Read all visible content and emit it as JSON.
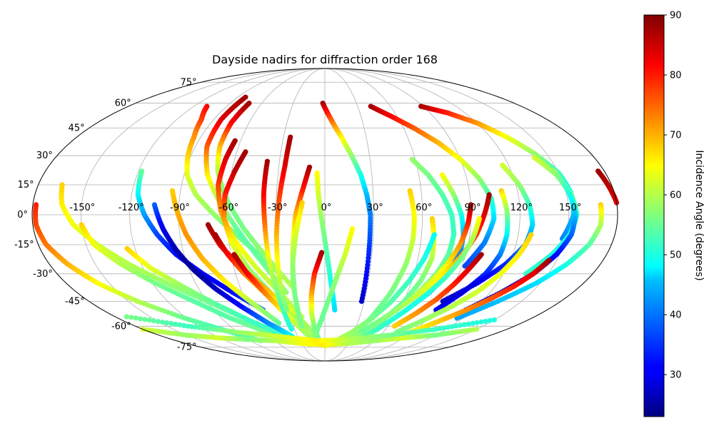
{
  "chart_data": {
    "type": "scatter",
    "projection": "mollweide",
    "title": "Dayside nadirs for diffraction order 168",
    "grid": true,
    "colormap": "jet",
    "lon_ticks": [
      "-150°",
      "-120°",
      "-90°",
      "-60°",
      "-30°",
      "0°",
      "30°",
      "60°",
      "90°",
      "120°",
      "150°"
    ],
    "lat_ticks": [
      "75°",
      "60°",
      "45°",
      "30°",
      "15°",
      "0°",
      "-15°",
      "-30°",
      "-45°",
      "-60°",
      "-75°"
    ],
    "colorbar": {
      "label": "Incidence Angle (degrees)",
      "range": [
        23,
        90
      ],
      "ticks": [
        "30",
        "40",
        "50",
        "60",
        "70",
        "80",
        "90"
      ]
    },
    "tracks": [
      {
        "lon": [
          -178,
          -178,
          -175,
          -168,
          -158,
          -143,
          -122,
          -100,
          -78
        ],
        "lat": [
          5,
          -5,
          -15,
          -25,
          -35,
          -45,
          -55,
          -63,
          -70
        ],
        "inc": [
          80,
          77,
          74,
          70,
          65,
          60,
          55,
          52,
          55
        ]
      },
      {
        "lon": [
          -165,
          -162,
          -155,
          -143,
          -128,
          -110,
          -90,
          -70
        ],
        "lat": [
          15,
          5,
          -5,
          -15,
          -25,
          -35,
          -45,
          -55
        ],
        "inc": [
          68,
          66,
          64,
          62,
          60,
          58,
          56,
          55
        ]
      },
      {
        "lon": [
          -150,
          -145,
          -133,
          -118,
          -100,
          -82,
          -62,
          -45
        ],
        "lat": [
          -5,
          -15,
          -25,
          -35,
          -45,
          -55,
          -63,
          -70
        ],
        "inc": [
          68,
          64,
          60,
          56,
          54,
          54,
          56,
          60
        ]
      },
      {
        "lon": [
          -125,
          -115,
          -100,
          -84,
          -66,
          -48,
          -30
        ],
        "lat": [
          -17,
          -27,
          -37,
          -47,
          -57,
          -65,
          -72
        ],
        "inc": [
          68,
          63,
          58,
          54,
          52,
          52,
          55
        ]
      },
      {
        "lon": [
          -108,
          -100,
          -95,
          -92,
          -88,
          -80,
          -68,
          -55,
          -42,
          -30
        ],
        "lat": [
          58,
          50,
          40,
          30,
          20,
          10,
          0,
          -10,
          -20,
          -30
        ],
        "inc": [
          82,
          78,
          72,
          68,
          63,
          60,
          58,
          56,
          55,
          56
        ]
      },
      {
        "lon": [
          -118,
          -116,
          -111,
          -104,
          -95,
          -82,
          -67,
          -50
        ],
        "lat": [
          22,
          10,
          0,
          -10,
          -20,
          -30,
          -40,
          -50
        ],
        "inc": [
          55,
          48,
          42,
          36,
          32,
          30,
          32,
          38
        ]
      },
      {
        "lon": [
          -105,
          -100,
          -94,
          -87,
          -78,
          -66,
          -52,
          -36
        ],
        "lat": [
          5,
          -7,
          -18,
          -28,
          -38,
          -48,
          -58,
          -67
        ],
        "inc": [
          38,
          30,
          26,
          25,
          27,
          32,
          40,
          48
        ]
      },
      {
        "lon": [
          -95,
          -91,
          -86,
          -79,
          -69,
          -56,
          -42
        ],
        "lat": [
          12,
          2,
          -10,
          -22,
          -34,
          -46,
          -58
        ],
        "inc": [
          68,
          70,
          72,
          70,
          66,
          60,
          55
        ]
      },
      {
        "lon": [
          -82,
          -84,
          -82,
          -75,
          -64,
          -52,
          -40,
          -28
        ],
        "lat": [
          64,
          50,
          35,
          20,
          5,
          -10,
          -25,
          -40
        ],
        "inc": [
          88,
          84,
          76,
          66,
          58,
          54,
          55,
          58
        ]
      },
      {
        "lon": [
          -72,
          -74,
          -73,
          -69,
          -61,
          -50,
          -37,
          -23
        ],
        "lat": [
          60,
          48,
          35,
          22,
          8,
          -7,
          -22,
          -37
        ],
        "inc": [
          88,
          82,
          70,
          60,
          56,
          56,
          58,
          60
        ]
      },
      {
        "lon": [
          -64,
          -66,
          -67,
          -64,
          -57,
          -46,
          -33,
          -20
        ],
        "lat": [
          38,
          28,
          15,
          2,
          -12,
          -26,
          -40,
          -54
        ],
        "inc": [
          88,
          84,
          78,
          72,
          66,
          62,
          60,
          60
        ]
      },
      {
        "lon": [
          -54,
          -58,
          -62,
          -62,
          -58,
          -50,
          -38,
          -24
        ],
        "lat": [
          32,
          22,
          10,
          -2,
          -15,
          -28,
          -42,
          -56
        ],
        "inc": [
          88,
          86,
          80,
          72,
          64,
          58,
          56,
          56
        ]
      },
      {
        "lon": [
          -72,
          -66,
          -57,
          -46,
          -34,
          -22,
          -12
        ],
        "lat": [
          -5,
          -15,
          -25,
          -35,
          -45,
          -55,
          -65
        ],
        "inc": [
          88,
          84,
          78,
          72,
          66,
          60,
          58
        ]
      },
      {
        "lon": [
          -68,
          -62,
          -54,
          -44,
          -33,
          -22,
          -12
        ],
        "lat": [
          -10,
          -20,
          -30,
          -40,
          -50,
          -60,
          -70
        ],
        "inc": [
          88,
          82,
          74,
          66,
          60,
          58,
          60
        ]
      },
      {
        "lon": [
          -58,
          -52,
          -44,
          -35,
          -25,
          -14
        ],
        "lat": [
          -20,
          -30,
          -40,
          -50,
          -60,
          -70
        ],
        "inc": [
          88,
          82,
          74,
          66,
          60,
          58
        ]
      },
      {
        "lon": [
          -38,
          -38,
          -37,
          -36,
          -34,
          -33
        ],
        "lat": [
          27,
          10,
          -5,
          -25,
          -45,
          -62
        ],
        "inc": [
          88,
          82,
          74,
          62,
          54,
          50
        ]
      },
      {
        "lon": [
          -25,
          -26,
          -28,
          -30,
          -31,
          -31
        ],
        "lat": [
          40,
          25,
          10,
          -10,
          -30,
          -50
        ],
        "inc": [
          88,
          84,
          78,
          70,
          62,
          56
        ]
      },
      {
        "lon": [
          -10,
          -14,
          -18,
          -20,
          -22,
          -22
        ],
        "lat": [
          24,
          12,
          0,
          -15,
          -35,
          -55
        ],
        "inc": [
          88,
          80,
          70,
          62,
          56,
          52
        ]
      },
      {
        "lon": [
          -14,
          -18,
          -21,
          -22,
          -22
        ],
        "lat": [
          6,
          -10,
          -25,
          -42,
          -60
        ],
        "inc": [
          68,
          62,
          58,
          56,
          56
        ]
      },
      {
        "lon": [
          -2,
          -7,
          -10,
          -11,
          -10,
          -7
        ],
        "lat": [
          -19,
          -30,
          -42,
          -52,
          -62,
          -70
        ],
        "inc": [
          88,
          80,
          70,
          62,
          56,
          55
        ]
      },
      {
        "lon": [
          -5,
          -4,
          -2,
          1,
          4,
          8
        ],
        "lat": [
          21,
          10,
          -2,
          -18,
          -34,
          -50
        ],
        "inc": [
          65,
          62,
          58,
          54,
          50,
          46
        ]
      },
      {
        "lon": [
          -2,
          5,
          12,
          18,
          23,
          26,
          28,
          28,
          28
        ],
        "lat": [
          60,
          50,
          40,
          30,
          20,
          10,
          0,
          -20,
          -45
        ],
        "inc": [
          88,
          76,
          66,
          58,
          50,
          44,
          40,
          34,
          28
        ]
      },
      {
        "lon": [
          17,
          13,
          8,
          3,
          -3,
          -10,
          -20
        ],
        "lat": [
          -7,
          -20,
          -32,
          -44,
          -56,
          -66,
          -73
        ],
        "inc": [
          65,
          62,
          58,
          56,
          55,
          56,
          60
        ]
      },
      {
        "lon": [
          53,
          55,
          55,
          53,
          48,
          40,
          28
        ],
        "lat": [
          12,
          0,
          -12,
          -25,
          -40,
          -55,
          -68
        ],
        "inc": [
          68,
          65,
          62,
          58,
          56,
          55,
          56
        ]
      },
      {
        "lon": [
          66,
          68,
          69,
          66,
          60,
          50,
          36,
          20
        ],
        "lat": [
          -2,
          -12,
          -22,
          -34,
          -46,
          -58,
          -66,
          -72
        ],
        "inc": [
          68,
          64,
          60,
          56,
          55,
          55,
          57,
          60
        ]
      },
      {
        "lon": [
          68,
          64,
          58,
          50,
          40,
          28,
          14,
          0
        ],
        "lat": [
          -10,
          -22,
          -34,
          -46,
          -56,
          -64,
          -70,
          -74
        ],
        "inc": [
          48,
          50,
          52,
          54,
          56,
          58,
          60,
          62
        ]
      },
      {
        "lon": [
          42,
          55,
          68,
          80,
          90,
          98,
          103,
          104,
          100,
          92
        ],
        "lat": [
          58,
          52,
          45,
          37,
          28,
          18,
          8,
          -2,
          -14,
          -26
        ],
        "inc": [
          88,
          82,
          76,
          70,
          64,
          58,
          52,
          46,
          40,
          36
        ]
      },
      {
        "lon": [
          58,
          66,
          73,
          78,
          80,
          79,
          75,
          68
        ],
        "lat": [
          28,
          20,
          10,
          0,
          -10,
          -20,
          -30,
          -40
        ],
        "inc": [
          58,
          56,
          54,
          52,
          52,
          54,
          56,
          58
        ]
      },
      {
        "lon": [
          75,
          80,
          84,
          86,
          86,
          82,
          76,
          66
        ],
        "lat": [
          20,
          10,
          0,
          -10,
          -20,
          -30,
          -40,
          -50
        ],
        "inc": [
          65,
          58,
          50,
          44,
          40,
          38,
          40,
          46
        ]
      },
      {
        "lon": [
          90,
          88,
          85,
          80,
          73,
          64,
          52,
          38
        ],
        "lat": [
          5,
          -5,
          -15,
          -25,
          -35,
          -45,
          -55,
          -63
        ],
        "inc": [
          88,
          80,
          72,
          66,
          62,
          58,
          56,
          55
        ]
      },
      {
        "lon": [
          102,
          98,
          94,
          88,
          80,
          70,
          58,
          44
        ],
        "lat": [
          10,
          0,
          -10,
          -20,
          -30,
          -40,
          -50,
          -60
        ],
        "inc": [
          88,
          84,
          78,
          72,
          66,
          62,
          58,
          56
        ]
      },
      {
        "lon": [
          95,
          92,
          88,
          82,
          74,
          64,
          52,
          38
        ],
        "lat": [
          -2,
          -12,
          -22,
          -32,
          -42,
          -52,
          -62,
          -70
        ],
        "inc": [
          65,
          60,
          56,
          52,
          50,
          50,
          52,
          55
        ]
      },
      {
        "lon": [
          110,
          112,
          113,
          112,
          108,
          100,
          90
        ],
        "lat": [
          12,
          2,
          -10,
          -20,
          -30,
          -40,
          -50
        ],
        "inc": [
          68,
          58,
          48,
          40,
          34,
          30,
          30
        ]
      },
      {
        "lon": [
          116,
          122,
          126,
          128,
          126,
          118,
          106,
          90
        ],
        "lat": [
          25,
          15,
          5,
          -5,
          -15,
          -25,
          -35,
          -45
        ],
        "inc": [
          62,
          58,
          52,
          46,
          40,
          34,
          30,
          28
        ]
      },
      {
        "lon": [
          128,
          124,
          118,
          110,
          100,
          88,
          74
        ],
        "lat": [
          -10,
          -20,
          -30,
          -40,
          -48,
          -56,
          -64
        ],
        "inc": [
          68,
          66,
          64,
          62,
          60,
          58,
          56
        ]
      },
      {
        "lon": [
          100,
          95,
          90,
          84,
          76,
          66
        ],
        "lat": [
          -20,
          -28,
          -36,
          -44,
          -52,
          -60
        ],
        "inc": [
          88,
          84,
          80,
          76,
          72,
          68
        ]
      },
      {
        "lon": [
          88,
          105,
          120,
          132,
          142,
          150,
          153,
          153,
          148
        ],
        "lat": [
          58,
          54,
          48,
          40,
          31,
          21,
          11,
          0,
          -12
        ],
        "inc": [
          88,
          80,
          72,
          64,
          58,
          52,
          48,
          44,
          40
        ]
      },
      {
        "lon": [
          140,
          148,
          153,
          155,
          152,
          145,
          135
        ],
        "lat": [
          29,
          20,
          10,
          0,
          -10,
          -20,
          -30
        ],
        "inc": [
          62,
          58,
          55,
          52,
          50,
          50,
          52
        ]
      },
      {
        "lon": [
          148,
          152,
          154,
          153,
          148,
          140,
          128,
          114
        ],
        "lat": [
          22,
          10,
          0,
          -10,
          -20,
          -30,
          -40,
          -50
        ],
        "inc": [
          58,
          50,
          44,
          38,
          32,
          28,
          28,
          32
        ]
      },
      {
        "lon": [
          170,
          170,
          166,
          158,
          147,
          132,
          115
        ],
        "lat": [
          5,
          -5,
          -15,
          -25,
          -35,
          -45,
          -55
        ],
        "inc": [
          68,
          60,
          54,
          50,
          46,
          44,
          42
        ]
      },
      {
        "lon": [
          145,
          140,
          133,
          124,
          113,
          100,
          86
        ],
        "lat": [
          -23,
          -30,
          -37,
          -44,
          -51,
          -58,
          -65
        ],
        "inc": [
          88,
          84,
          80,
          76,
          72,
          68,
          64
        ]
      },
      {
        "lon": [
          176,
          178,
          180
        ],
        "lat": [
          22,
          14,
          6
        ],
        "inc": [
          88,
          86,
          84
        ]
      },
      {
        "lon": [
          -180,
          -150,
          -120,
          -90,
          -60,
          -30,
          0,
          30,
          60,
          90,
          120,
          150
        ],
        "lat": [
          -62,
          -66,
          -68,
          -69,
          -70,
          -72,
          -73,
          -72,
          -70,
          -68,
          -66,
          -62
        ],
        "inc": [
          62,
          58,
          62,
          56,
          60,
          64,
          66,
          60,
          58,
          62,
          56,
          60
        ]
      },
      {
        "lon": [
          -170,
          -130,
          -90,
          -50,
          -10,
          30,
          70,
          110,
          150
        ],
        "lat": [
          -54,
          -60,
          -64,
          -67,
          -70,
          -69,
          -66,
          -62,
          -56
        ],
        "inc": [
          56,
          52,
          58,
          62,
          66,
          60,
          56,
          52,
          50
        ]
      }
    ]
  }
}
